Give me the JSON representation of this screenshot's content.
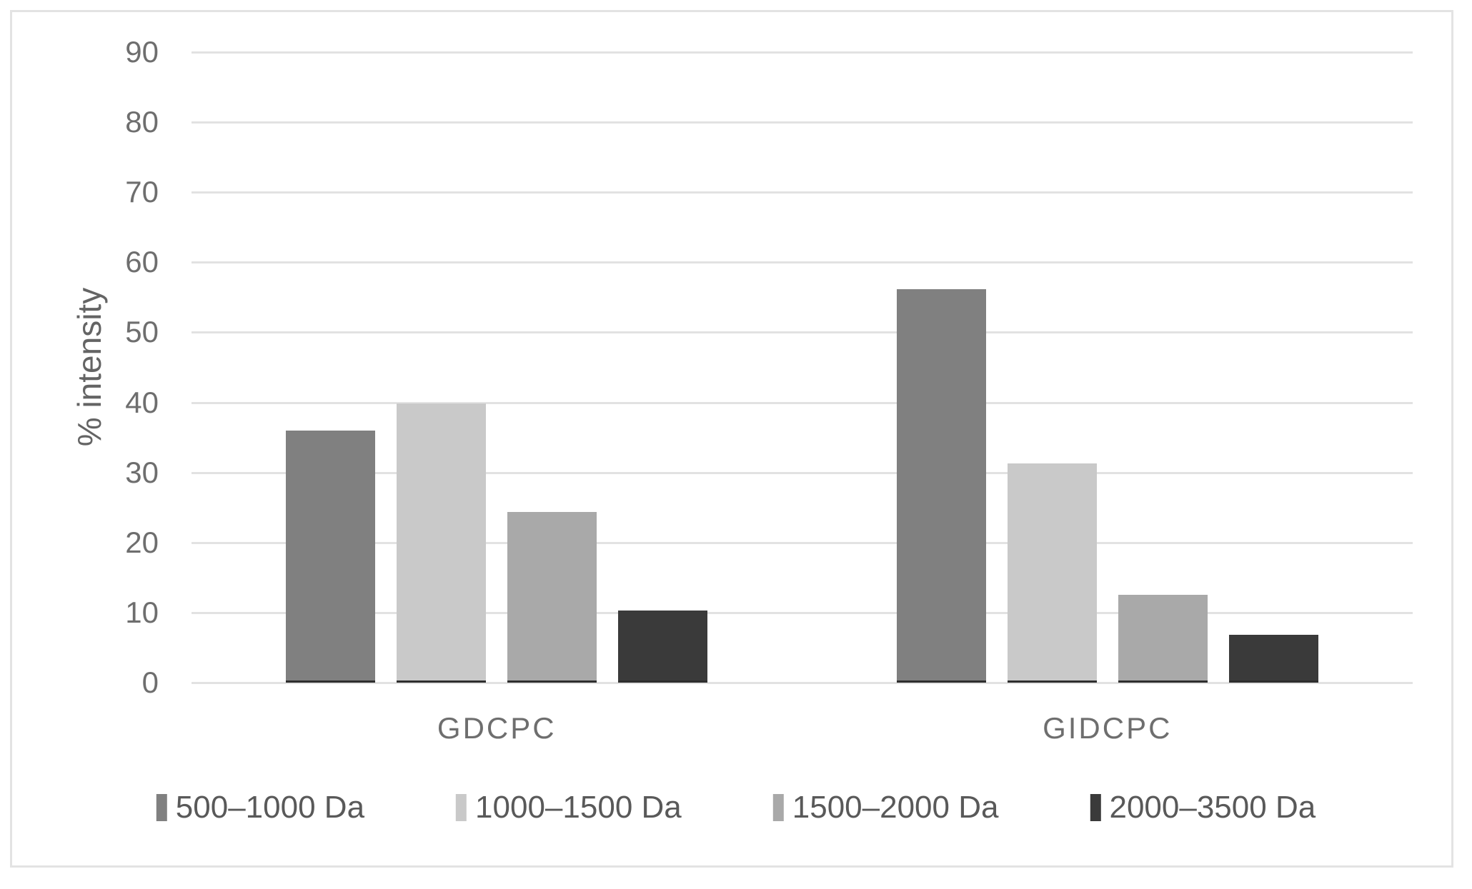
{
  "chart_data": {
    "type": "bar",
    "title": "",
    "categories": [
      "GDCPC",
      "GIDCPC"
    ],
    "series": [
      {
        "name": "500–1000 Da",
        "color": "#808080",
        "values": [
          36,
          56.2
        ]
      },
      {
        "name": "1000–1500 Da",
        "color": "#c9c9c9",
        "values": [
          39.9,
          31.3
        ]
      },
      {
        "name": "1500–2000 Da",
        "color": "#a9a9a9",
        "values": [
          24.4,
          12.5
        ]
      },
      {
        "name": "2000–3500 Da",
        "color": "#3a3a3a",
        "values": [
          10.3,
          6.8
        ]
      }
    ],
    "xlabel": "",
    "ylabel": "% intensity",
    "ylim": [
      0,
      90
    ],
    "ytick_step": 10,
    "yticks": [
      0,
      10,
      20,
      30,
      40,
      50,
      60,
      70,
      80,
      90
    ],
    "grid": true,
    "legend_position": "bottom",
    "colors": {
      "gridline": "#e2e2e2",
      "axis_text": "#6e6e6e",
      "legend_text": "#595959",
      "frame_border": "#e3e3e3",
      "bar_base_line": "#2e2e2e",
      "background": "#ffffff"
    }
  }
}
